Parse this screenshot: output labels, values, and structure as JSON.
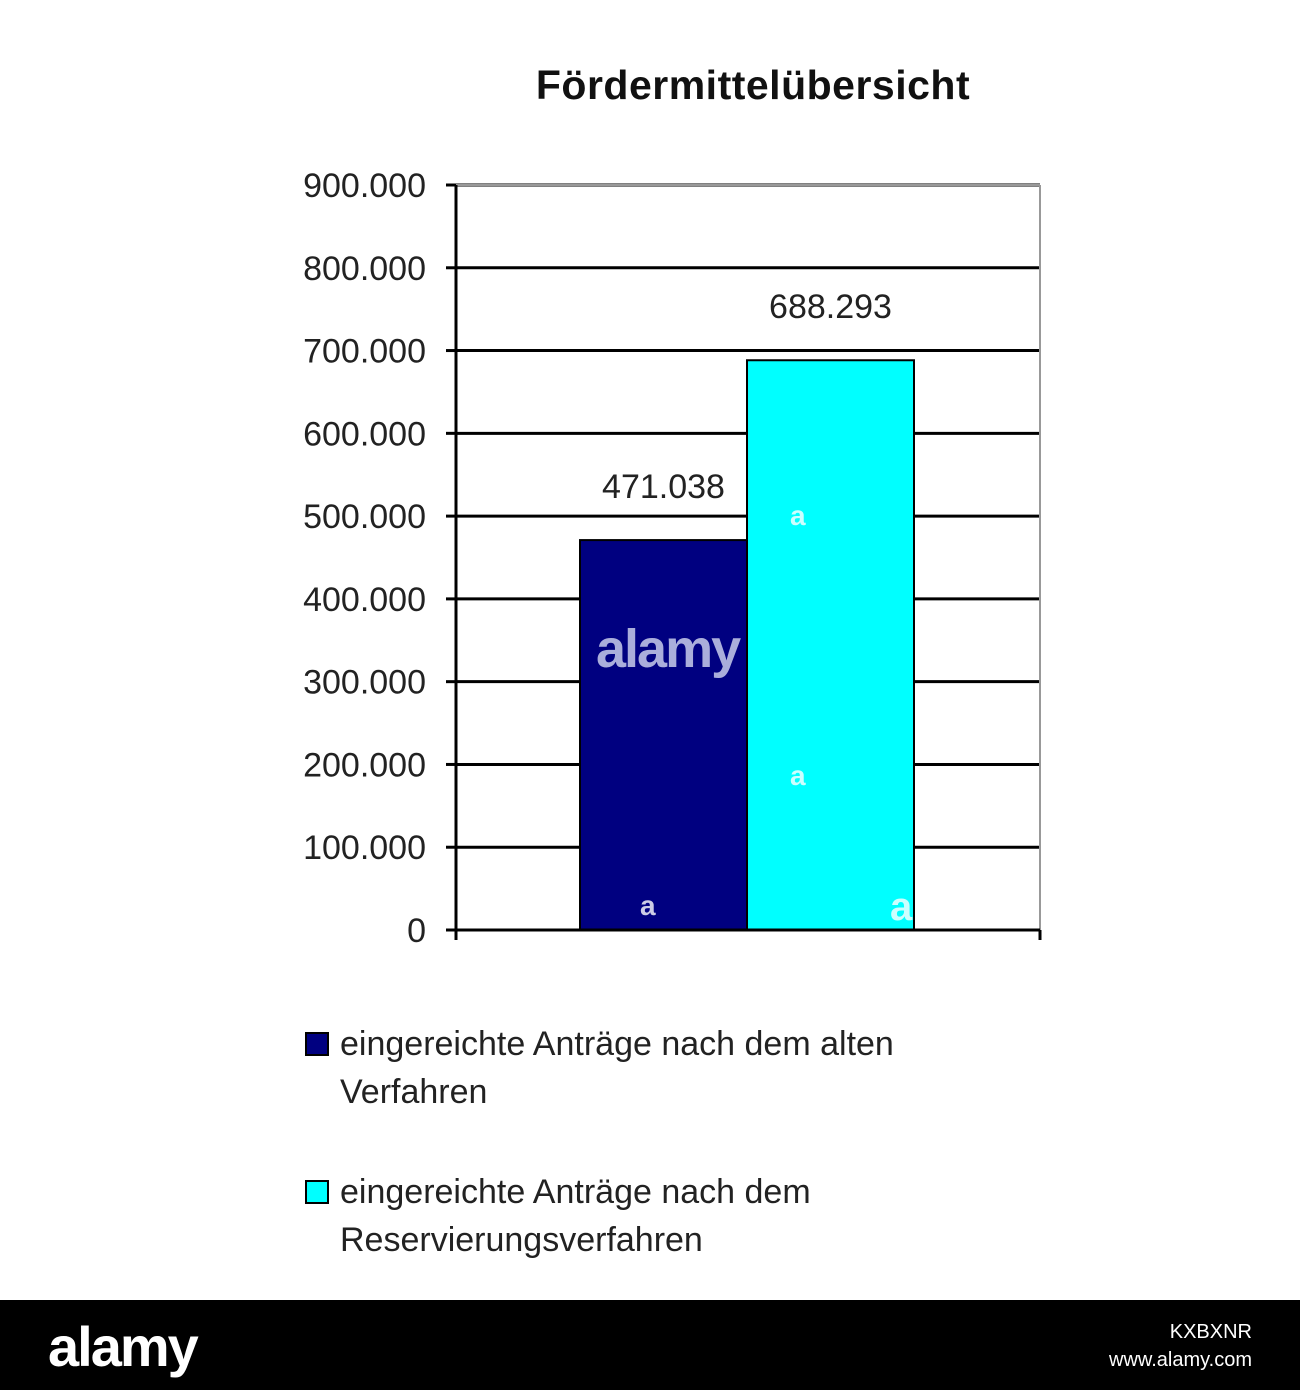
{
  "chart_data": {
    "type": "bar",
    "title": "Fördermittelübersicht",
    "xlabel": "",
    "ylabel": "",
    "ylim": [
      0,
      900000
    ],
    "yticks": [
      0,
      100000,
      200000,
      300000,
      400000,
      500000,
      600000,
      700000,
      800000,
      900000
    ],
    "ytick_labels": [
      "0",
      "100.000",
      "200.000",
      "300.000",
      "400.000",
      "500.000",
      "600.000",
      "700.000",
      "800.000",
      "900.000"
    ],
    "grid": true,
    "legend_position": "bottom",
    "series": [
      {
        "name": "eingereichte Anträge nach dem alten Verfahren",
        "value": 471038,
        "label": "471.038",
        "color": "#000080"
      },
      {
        "name": "eingereichte Anträge nach dem Reservierungsverfahren",
        "value": 688293,
        "label": "688.293",
        "color": "#00ffff"
      }
    ]
  },
  "watermark": {
    "logo": "alamy",
    "image_id": "KXBXNR",
    "site": "www.alamy.com",
    "bar_mark": "alamy",
    "small_mark": "a"
  }
}
